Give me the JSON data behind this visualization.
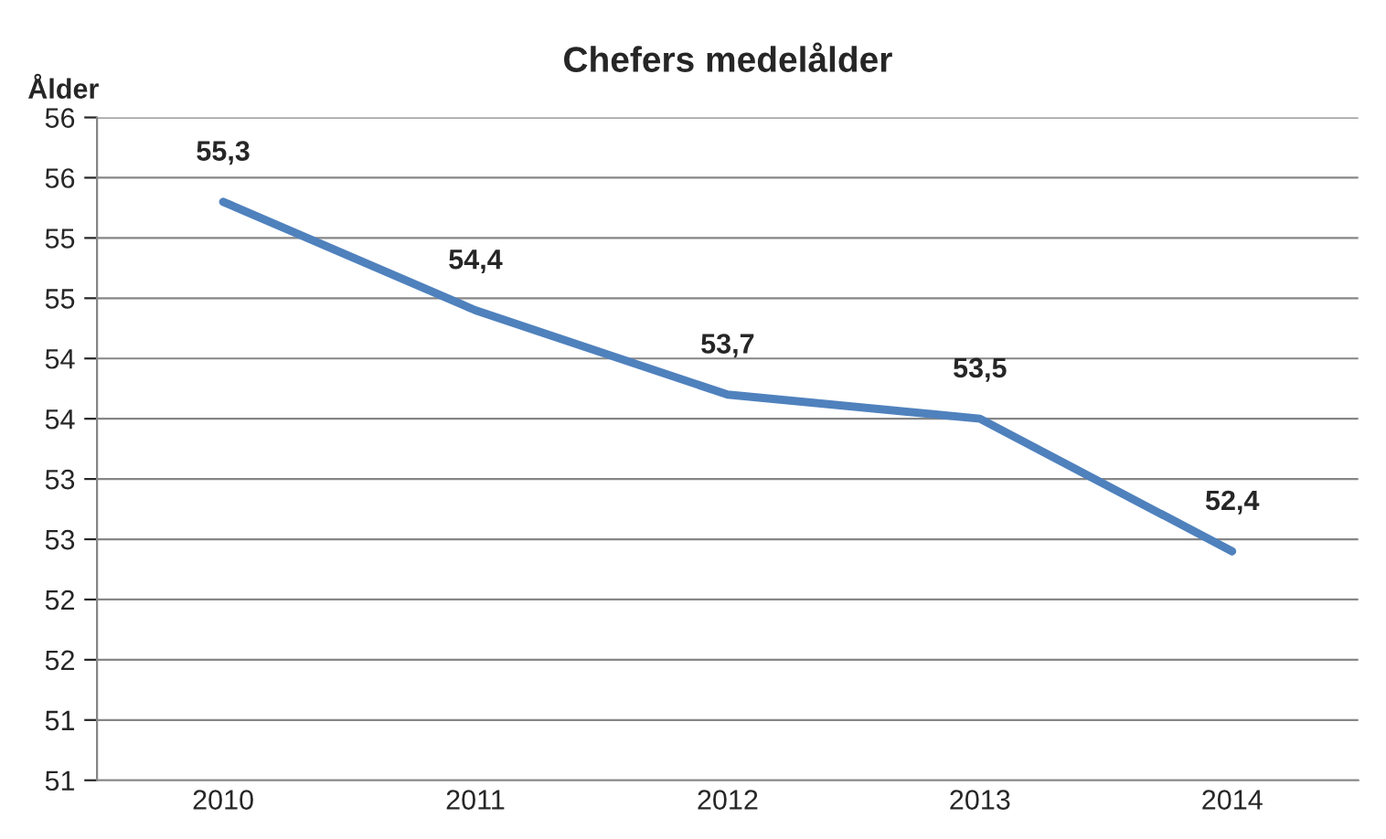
{
  "chart_data": {
    "type": "line",
    "title": "Chefers medelålder",
    "ylabel": "Ålder",
    "categories": [
      "2010",
      "2011",
      "2012",
      "2013",
      "2014"
    ],
    "series": [
      {
        "color": "#4f81bd",
        "values": [
          55.3,
          54.4,
          53.7,
          53.5,
          52.4
        ],
        "value_labels": [
          "55,3",
          "54,4",
          "53,7",
          "53,5",
          "52,4"
        ]
      }
    ],
    "ylim": [
      50.5,
      56
    ],
    "yticks": [
      {
        "value": 50.5,
        "label": "51"
      },
      {
        "value": 51,
        "label": "51"
      },
      {
        "value": 51.5,
        "label": "52"
      },
      {
        "value": 52,
        "label": "52"
      },
      {
        "value": 52.5,
        "label": "53"
      },
      {
        "value": 53,
        "label": "53"
      },
      {
        "value": 53.5,
        "label": "54"
      },
      {
        "value": 54,
        "label": "54"
      },
      {
        "value": 54.5,
        "label": "55"
      },
      {
        "value": 55,
        "label": "55"
      },
      {
        "value": 55.5,
        "label": "56"
      },
      {
        "value": 56,
        "label": "56"
      }
    ],
    "grid": "y",
    "marker": "none",
    "line_style": "solid"
  }
}
